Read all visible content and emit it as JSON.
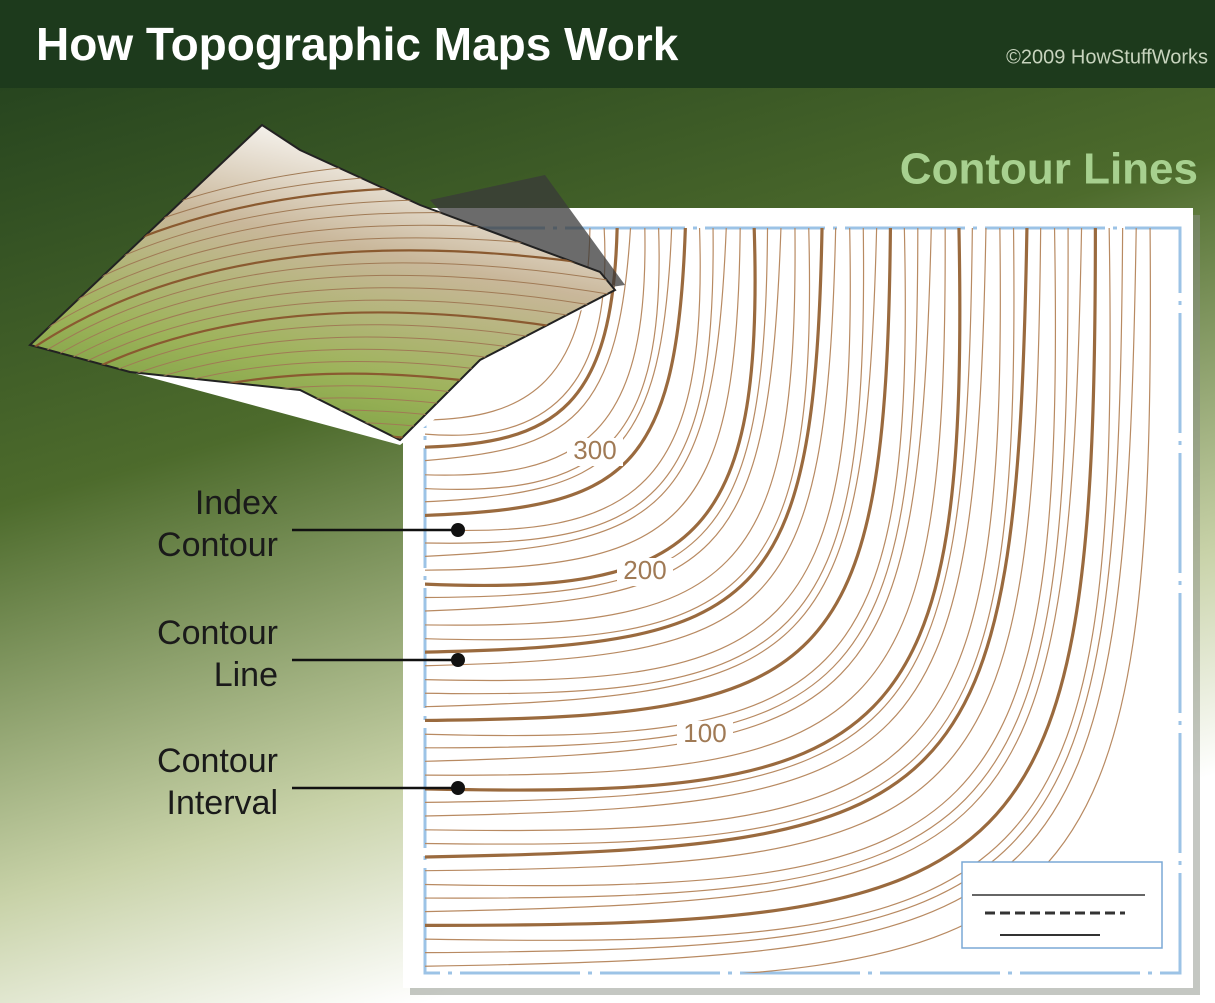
{
  "header": {
    "title": "How Topographic Maps Work",
    "credit": "©2009 HowStuffWorks"
  },
  "subtitle": "Contour Lines",
  "callouts": [
    {
      "lines": [
        "Index",
        "Contour"
      ]
    },
    {
      "lines": [
        "Contour",
        "Line"
      ]
    },
    {
      "lines": [
        "Contour",
        "Interval"
      ]
    }
  ],
  "contour_labels": [
    300,
    200,
    100
  ]
}
